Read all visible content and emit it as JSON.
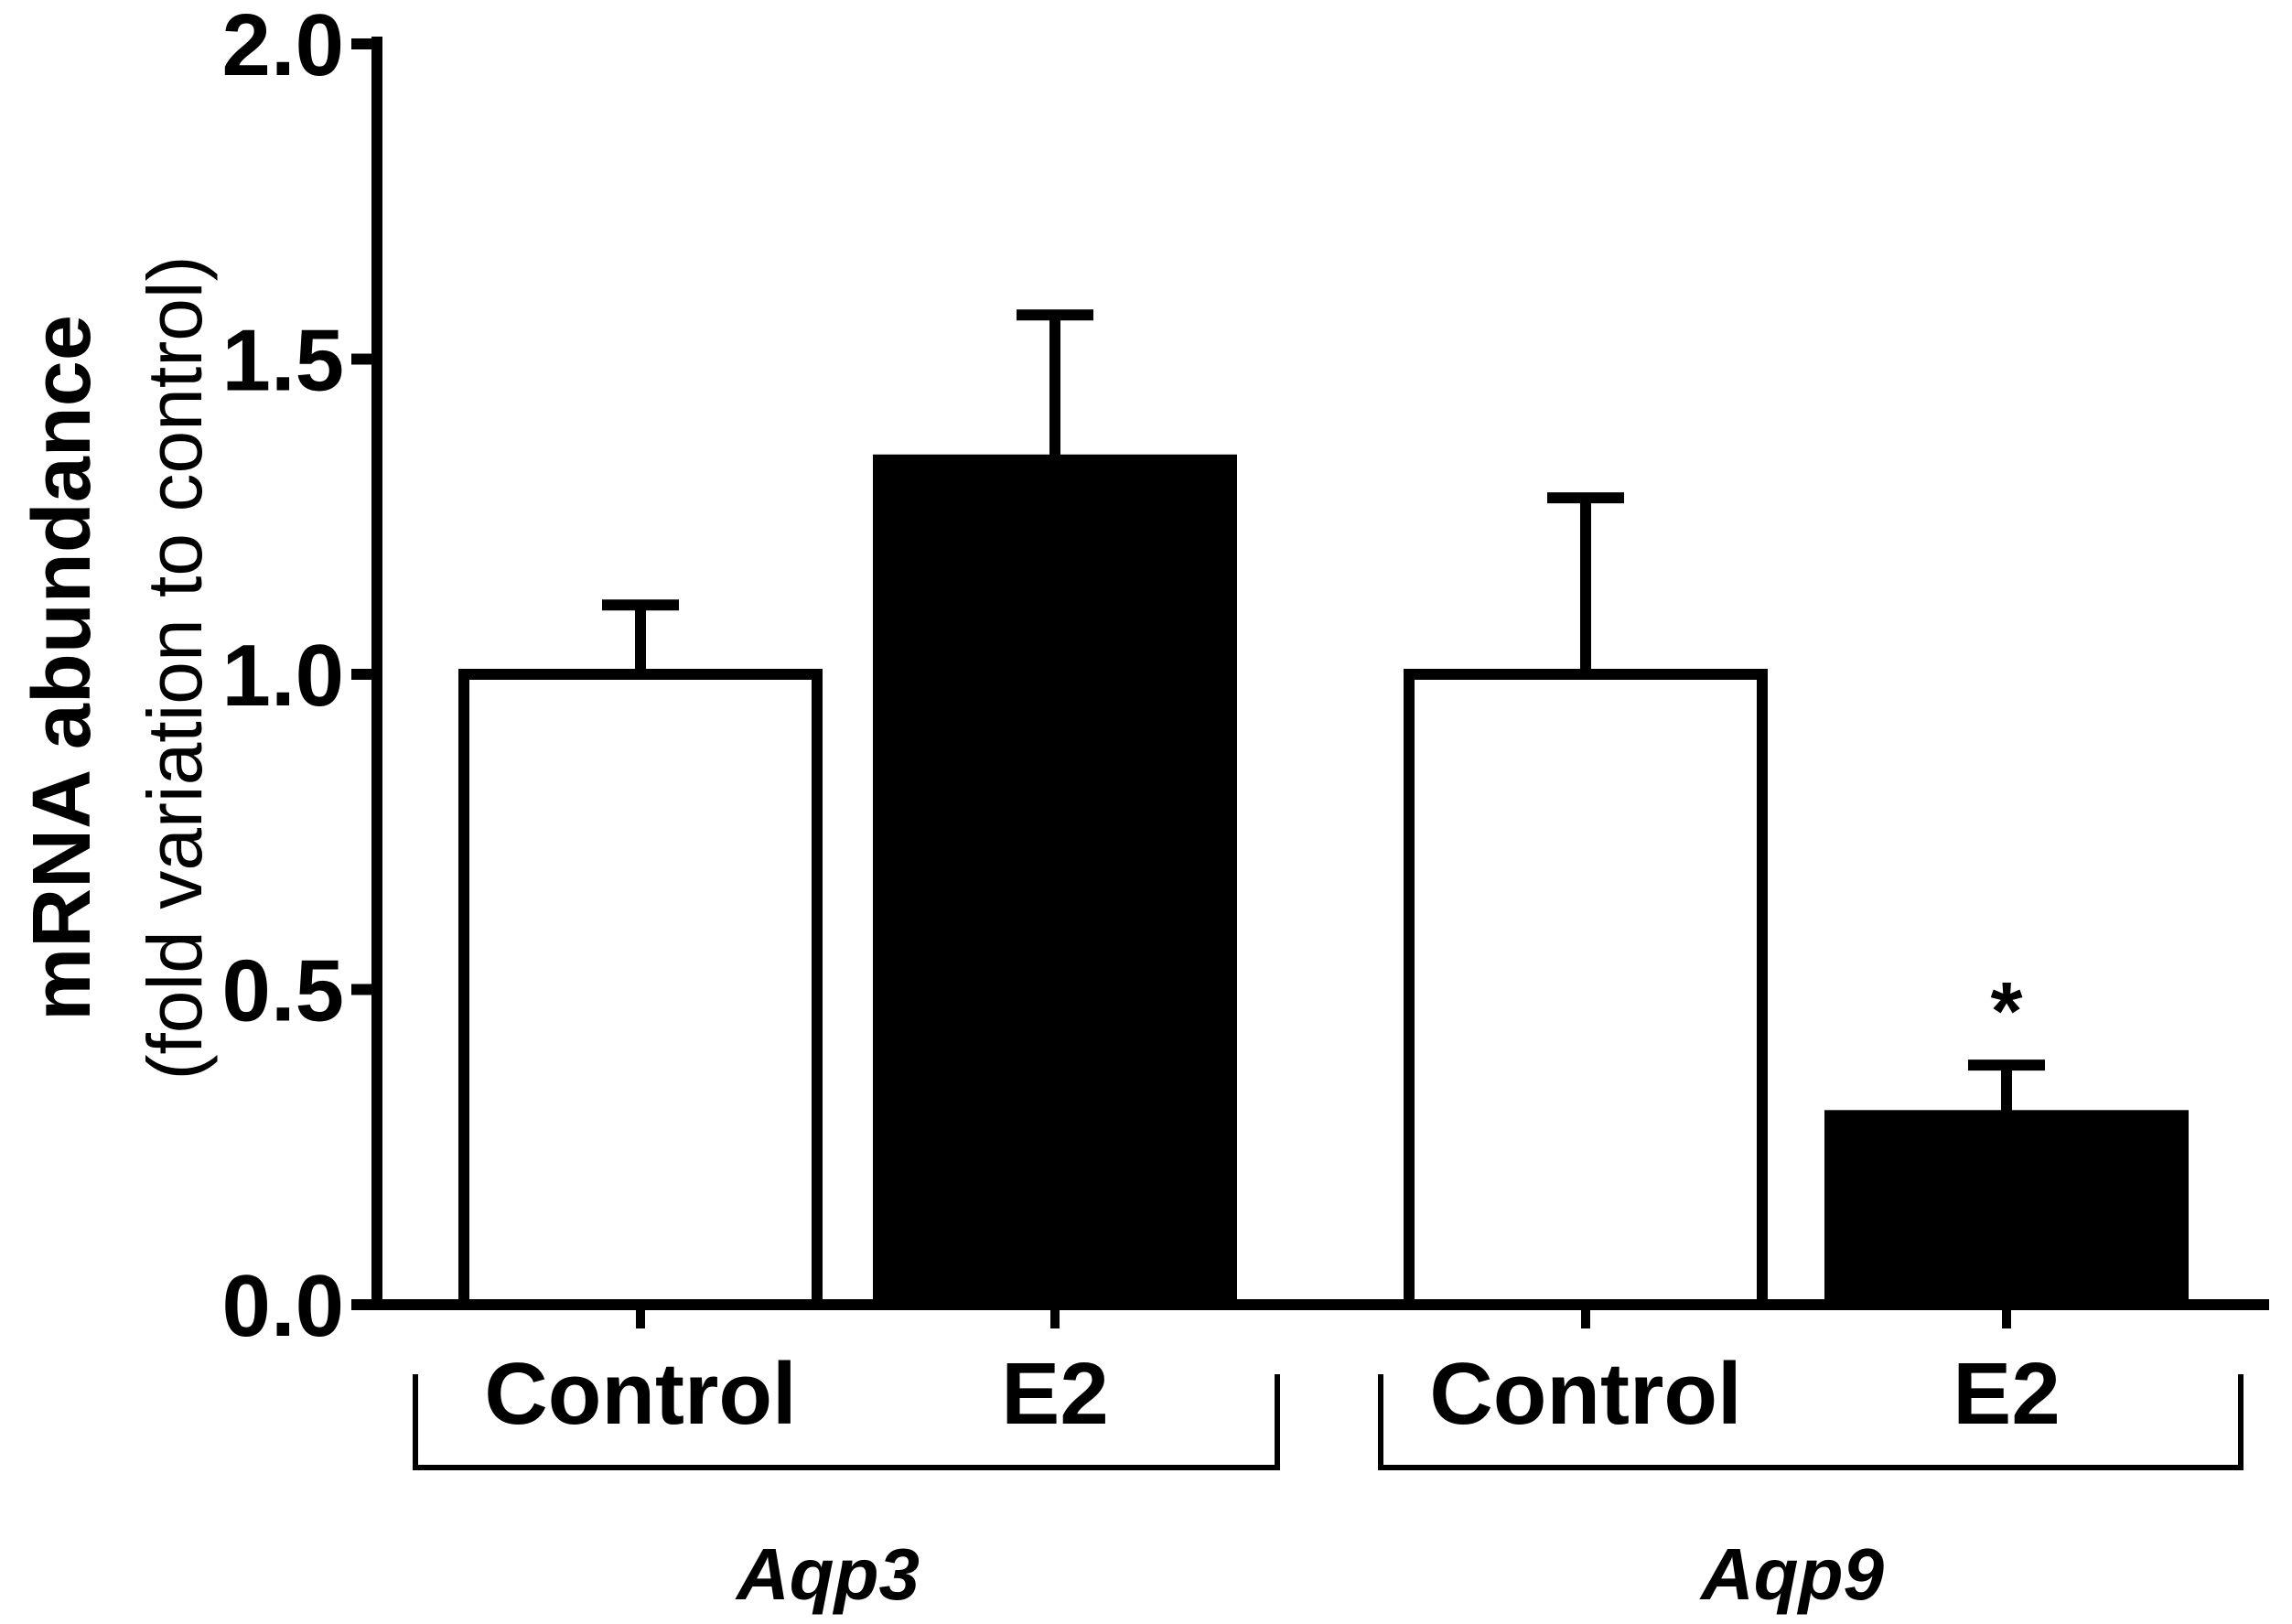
{
  "chart_data": {
    "type": "bar",
    "title": "",
    "ylabel": "mRNA abundance",
    "ylabel_sub": "(fold variation to control)",
    "xlabel": "",
    "ylim": [
      0,
      2.0
    ],
    "yticks": [
      0.0,
      0.5,
      1.0,
      1.5,
      2.0
    ],
    "ytick_labels": [
      "0.0",
      "0.5",
      "1.0",
      "1.5",
      "2.0"
    ],
    "groups": [
      {
        "name": "Aqp3",
        "bars": [
          {
            "category": "Control",
            "value": 1.0,
            "error": 0.11,
            "fill": "white",
            "annotation": ""
          },
          {
            "category": "E2",
            "value": 1.34,
            "error": 0.23,
            "fill": "black",
            "annotation": ""
          }
        ]
      },
      {
        "name": "Aqp9",
        "bars": [
          {
            "category": "Control",
            "value": 1.0,
            "error": 0.28,
            "fill": "white",
            "annotation": ""
          },
          {
            "category": "E2",
            "value": 0.3,
            "error": 0.08,
            "fill": "black",
            "annotation": "*"
          }
        ]
      }
    ],
    "colors": {
      "control": "#ffffff",
      "treatment": "#000000",
      "stroke": "#000000"
    }
  }
}
